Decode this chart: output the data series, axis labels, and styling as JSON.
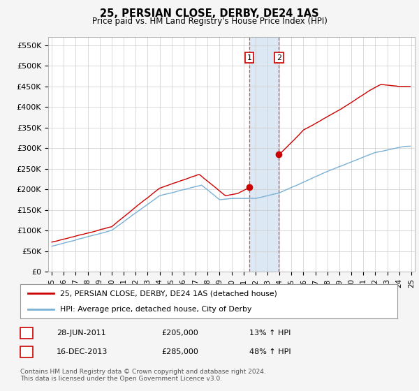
{
  "title": "25, PERSIAN CLOSE, DERBY, DE24 1AS",
  "subtitle": "Price paid vs. HM Land Registry's House Price Index (HPI)",
  "ylabel_ticks": [
    "£0",
    "£50K",
    "£100K",
    "£150K",
    "£200K",
    "£250K",
    "£300K",
    "£350K",
    "£400K",
    "£450K",
    "£500K",
    "£550K"
  ],
  "ytick_values": [
    0,
    50000,
    100000,
    150000,
    200000,
    250000,
    300000,
    350000,
    400000,
    450000,
    500000,
    550000
  ],
  "ylim": [
    0,
    570000
  ],
  "xlim_start": 1994.7,
  "xlim_end": 2025.3,
  "sale1_date": 2011.49,
  "sale1_price": 205000,
  "sale2_date": 2013.96,
  "sale2_price": 285000,
  "highlight_xmin": 2011.49,
  "highlight_xmax": 2013.96,
  "highlight_color": "#dce9f5",
  "grid_color": "#cccccc",
  "background_color": "#f5f5f5",
  "plot_bg_color": "#ffffff",
  "red_line_color": "#cc0000",
  "blue_line_color": "#7ab0d4",
  "legend_label1": "25, PERSIAN CLOSE, DERBY, DE24 1AS (detached house)",
  "legend_label2": "HPI: Average price, detached house, City of Derby",
  "annotation1_label": "1",
  "annotation2_label": "2",
  "table_row1": [
    "1",
    "28-JUN-2011",
    "£205,000",
    "13% ↑ HPI"
  ],
  "table_row2": [
    "2",
    "16-DEC-2013",
    "£285,000",
    "48% ↑ HPI"
  ],
  "footer": "Contains HM Land Registry data © Crown copyright and database right 2024.\nThis data is licensed under the Open Government Licence v3.0."
}
